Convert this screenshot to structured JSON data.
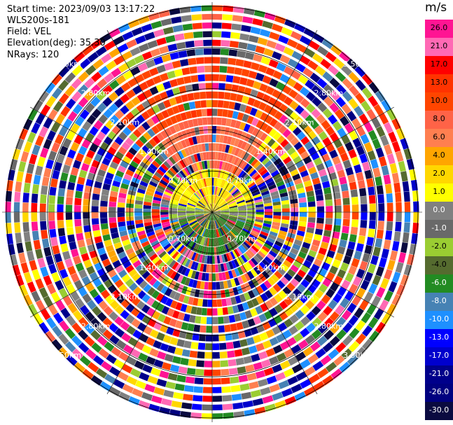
{
  "header": {
    "start_time": "Start time: 2023/09/03 13:17:22",
    "instrument": "WLS200s-181",
    "field": "Field: VEL",
    "elevation": "Elevation(deg): 35.30",
    "nrays": "NRays: 120"
  },
  "range_labels": [
    "0.70km",
    "1.40km",
    "2.10km",
    "2.80km",
    "3.50km"
  ],
  "colorbar": {
    "unit": "m/s",
    "ticks": [
      "26.0",
      "21.0",
      "17.0",
      "13.0",
      "10.0",
      "8.0",
      "6.0",
      "4.0",
      "2.0",
      "1.0",
      "0.0",
      "-1.0",
      "-2.0",
      "-4.0",
      "-6.0",
      "-8.0",
      "-10.0",
      "-13.0",
      "-17.0",
      "-21.0",
      "-26.0",
      "-30.0"
    ],
    "colors": [
      "#ff1493",
      "#ff69b4",
      "#ff0000",
      "#ff3300",
      "#ff4500",
      "#ff6347",
      "#ff7f50",
      "#ffa500",
      "#ffd700",
      "#ffff00",
      "#808080",
      "#696969",
      "#9acd32",
      "#556b2f",
      "#228b22",
      "#4682b4",
      "#1e90ff",
      "#0000ff",
      "#0000cd",
      "#00008b",
      "#000080",
      "#0a0a40"
    ]
  }
}
